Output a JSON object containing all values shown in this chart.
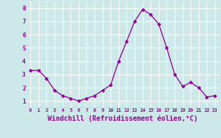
{
  "x": [
    0,
    1,
    2,
    3,
    4,
    5,
    6,
    7,
    8,
    9,
    10,
    11,
    12,
    13,
    14,
    15,
    16,
    17,
    18,
    19,
    20,
    21,
    22,
    23
  ],
  "y": [
    3.3,
    3.3,
    2.7,
    1.8,
    1.4,
    1.2,
    1.0,
    1.2,
    1.4,
    1.8,
    2.2,
    4.0,
    5.5,
    7.0,
    7.9,
    7.5,
    6.8,
    5.0,
    3.0,
    2.1,
    2.4,
    2.0,
    1.3,
    1.4
  ],
  "line_color": "#990099",
  "marker": "D",
  "markersize": 2.5,
  "linewidth": 1.0,
  "xlabel": "Windchill (Refroidissement éolien,°C)",
  "xtick_labels": [
    "0",
    "1",
    "2",
    "3",
    "4",
    "5",
    "6",
    "7",
    "8",
    "9",
    "10",
    "11",
    "12",
    "13",
    "14",
    "15",
    "16",
    "17",
    "18",
    "19",
    "20",
    "21",
    "22",
    "23"
  ],
  "xlim": [
    -0.5,
    23.5
  ],
  "ylim": [
    0.5,
    8.5
  ],
  "yticks": [
    1,
    2,
    3,
    4,
    5,
    6,
    7,
    8
  ],
  "background_color": "#cce8e8",
  "grid_color": "#ffffff",
  "label_color": "#990099",
  "xlabel_fontsize": 7,
  "xtick_fontsize": 5,
  "ytick_fontsize": 6
}
